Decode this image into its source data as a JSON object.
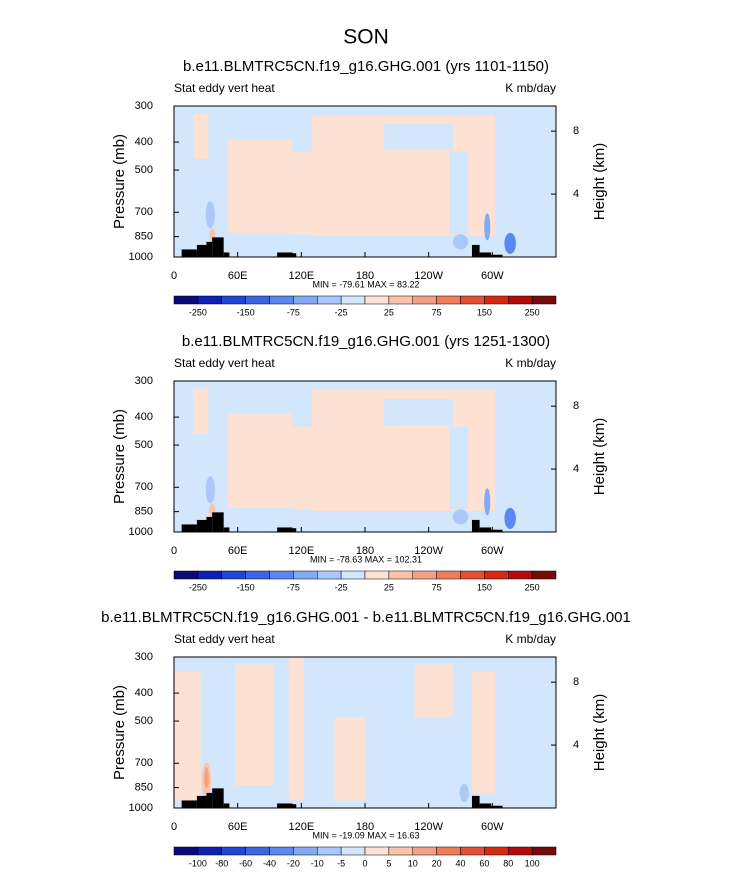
{
  "title": "SON",
  "chart_data": [
    {
      "type": "contour",
      "title": "b.e11.BLMTRC5CN.f19_g16.GHG.001 (yrs 1101-1150)",
      "left_label": "Stat eddy vert heat",
      "right_label": "K mb/day",
      "ylabel": "Pressure (mb)",
      "y2label": "Height (km)",
      "xlim": [
        0,
        360
      ],
      "xticks": [
        0,
        {
          "value": 60,
          "label": "60E"
        },
        {
          "value": 120,
          "label": "120E"
        },
        180,
        {
          "value": 240,
          "label": "120W"
        },
        {
          "value": 300,
          "label": "60W"
        }
      ],
      "ylim": [
        1000,
        300
      ],
      "log_y": true,
      "yticks": [
        300,
        400,
        500,
        700,
        850,
        1000
      ],
      "y2lim": [
        0,
        9.6
      ],
      "y2ticks": [
        4,
        8
      ],
      "stats": "MIN = -79.61  MAX =  83.22",
      "colors": [
        "#0a0a78",
        "#0f1fb4",
        "#1e46d7",
        "#3c64e6",
        "#5a87f0",
        "#82aaf5",
        "#aac8fa",
        "#d2e6fc",
        "#fde1d2",
        "#fbc3aa",
        "#f5a082",
        "#ef7d5a",
        "#e65032",
        "#d72814",
        "#b40a0a",
        "#780a0a"
      ],
      "colorbar_ticks": [
        -250,
        -150,
        -75,
        -25,
        25,
        75,
        150,
        250
      ]
    },
    {
      "type": "contour",
      "title": "b.e11.BLMTRC5CN.f19_g16.GHG.001 (yrs 1251-1300)",
      "left_label": "Stat eddy vert heat",
      "right_label": "K mb/day",
      "ylabel": "Pressure (mb)",
      "y2label": "Height (km)",
      "xlim": [
        0,
        360
      ],
      "xticks": [
        0,
        {
          "value": 60,
          "label": "60E"
        },
        {
          "value": 120,
          "label": "120E"
        },
        180,
        {
          "value": 240,
          "label": "120W"
        },
        {
          "value": 300,
          "label": "60W"
        }
      ],
      "ylim": [
        1000,
        300
      ],
      "log_y": true,
      "yticks": [
        300,
        400,
        500,
        700,
        850,
        1000
      ],
      "y2lim": [
        0,
        9.6
      ],
      "y2ticks": [
        4,
        8
      ],
      "stats": "MIN = -78.63  MAX = 102.31",
      "colors": [
        "#0a0a78",
        "#0f1fb4",
        "#1e46d7",
        "#3c64e6",
        "#5a87f0",
        "#82aaf5",
        "#aac8fa",
        "#d2e6fc",
        "#fde1d2",
        "#fbc3aa",
        "#f5a082",
        "#ef7d5a",
        "#e65032",
        "#d72814",
        "#b40a0a",
        "#780a0a"
      ],
      "colorbar_ticks": [
        -250,
        -150,
        -75,
        -25,
        25,
        75,
        150,
        250
      ]
    },
    {
      "type": "contour",
      "title": "b.e11.BLMTRC5CN.f19_g16.GHG.001 - b.e11.BLMTRC5CN.f19_g16.GHG.001",
      "left_label": "Stat eddy vert heat",
      "right_label": "K mb/day",
      "ylabel": "Pressure (mb)",
      "y2label": "Height (km)",
      "xlim": [
        0,
        360
      ],
      "xticks": [
        0,
        {
          "value": 60,
          "label": "60E"
        },
        {
          "value": 120,
          "label": "120E"
        },
        180,
        {
          "value": 240,
          "label": "120W"
        },
        {
          "value": 300,
          "label": "60W"
        }
      ],
      "ylim": [
        1000,
        300
      ],
      "log_y": true,
      "yticks": [
        300,
        400,
        500,
        700,
        850,
        1000
      ],
      "y2lim": [
        0,
        9.6
      ],
      "y2ticks": [
        4,
        8
      ],
      "stats": "MIN = -19.09  MAX =  16.63",
      "colors": [
        "#0a0a78",
        "#0f1fb4",
        "#1e46d7",
        "#3c64e6",
        "#5a87f0",
        "#82aaf5",
        "#aac8fa",
        "#d2e6fc",
        "#fde1d2",
        "#fbc3aa",
        "#f5a082",
        "#ef7d5a",
        "#e65032",
        "#d72814",
        "#b40a0a",
        "#780a0a"
      ],
      "colorbar_ticks": [
        -100,
        -80,
        -60,
        -40,
        -20,
        -10,
        -5,
        0,
        5,
        10,
        20,
        40,
        60,
        80,
        100
      ]
    }
  ]
}
